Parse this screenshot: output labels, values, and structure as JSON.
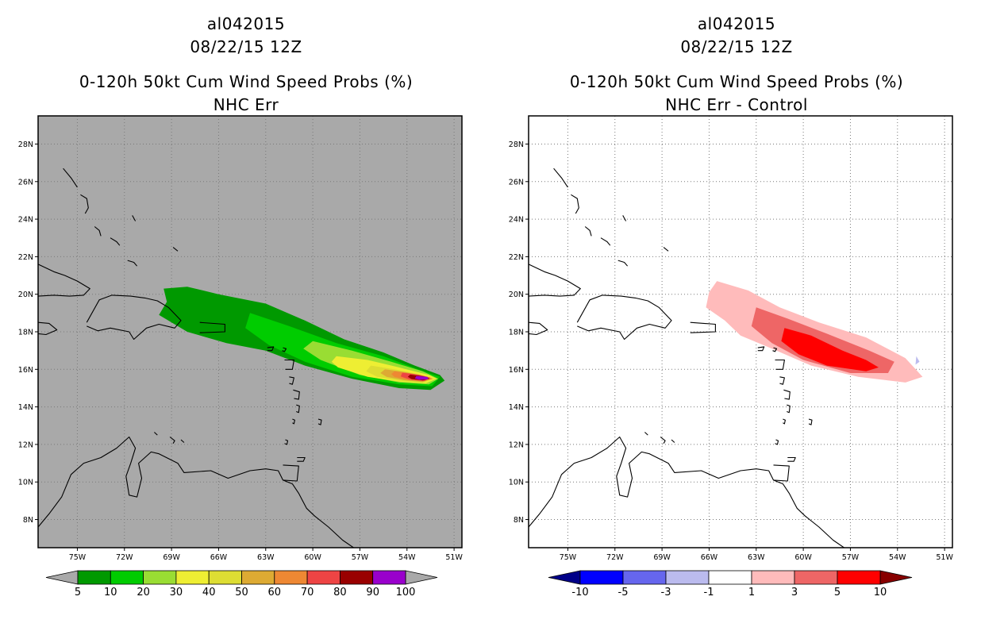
{
  "chart_data": [
    {
      "type": "heatmap",
      "id": "left",
      "title_lines": [
        "al042015",
        "08/22/15 12Z",
        "0-120h 50kt Cum Wind Speed Probs (%)",
        "NHC Err"
      ],
      "background": "#a9a9a9",
      "lon_range": [
        -77.5,
        -50.5
      ],
      "lat_range": [
        6.5,
        29.5
      ],
      "x_ticks": [
        "75W",
        "72W",
        "69W",
        "66W",
        "63W",
        "60W",
        "57W",
        "54W",
        "51W"
      ],
      "x_tick_values": [
        -75,
        -72,
        -69,
        -66,
        -63,
        -60,
        -57,
        -54,
        -51
      ],
      "y_ticks": [
        "28N",
        "26N",
        "24N",
        "22N",
        "20N",
        "18N",
        "16N",
        "14N",
        "12N",
        "10N",
        "8N"
      ],
      "y_tick_values": [
        28,
        26,
        24,
        22,
        20,
        18,
        16,
        14,
        12,
        10,
        8
      ],
      "colorbar": {
        "labels": [
          "5",
          "10",
          "20",
          "30",
          "40",
          "50",
          "60",
          "70",
          "80",
          "90",
          "100"
        ],
        "colors": [
          "#009900",
          "#00cc00",
          "#99dd33",
          "#eeee33",
          "#dddd33",
          "#ddaa33",
          "#ee8833",
          "#ee4444",
          "#990000",
          "#9900cc"
        ],
        "under_color": "#a9a9a9",
        "over_color": "#a9a9a9"
      },
      "contours": [
        {
          "level": "5",
          "color": "#009900",
          "lonlat": [
            [
              -69.5,
              20.3
            ],
            [
              -68.0,
              20.4
            ],
            [
              -66.0,
              20.0
            ],
            [
              -63.0,
              19.5
            ],
            [
              -60.5,
              18.6
            ],
            [
              -58.0,
              17.6
            ],
            [
              -55.5,
              16.9
            ],
            [
              -53.5,
              16.2
            ],
            [
              -51.9,
              15.7
            ],
            [
              -51.6,
              15.4
            ],
            [
              -52.5,
              14.9
            ],
            [
              -54.5,
              15.0
            ],
            [
              -57.5,
              15.5
            ],
            [
              -60.5,
              16.2
            ],
            [
              -63.0,
              17.0
            ],
            [
              -65.5,
              17.4
            ],
            [
              -68.0,
              18.0
            ],
            [
              -69.8,
              18.9
            ],
            [
              -69.3,
              19.6
            ]
          ]
        },
        {
          "level": "10",
          "color": "#00cc00",
          "lonlat": [
            [
              -64.0,
              19.0
            ],
            [
              -61.5,
              18.3
            ],
            [
              -58.5,
              17.4
            ],
            [
              -55.5,
              16.7
            ],
            [
              -53.3,
              16.0
            ],
            [
              -51.9,
              15.6
            ],
            [
              -52.4,
              15.1
            ],
            [
              -54.5,
              15.2
            ],
            [
              -57.5,
              15.6
            ],
            [
              -60.5,
              16.4
            ],
            [
              -62.8,
              17.3
            ],
            [
              -64.3,
              18.2
            ]
          ]
        },
        {
          "level": "20",
          "color": "#99dd33",
          "lonlat": [
            [
              -60.0,
              17.5
            ],
            [
              -57.5,
              17.0
            ],
            [
              -55.0,
              16.4
            ],
            [
              -53.0,
              15.9
            ],
            [
              -52.0,
              15.5
            ],
            [
              -52.6,
              15.2
            ],
            [
              -54.5,
              15.3
            ],
            [
              -57.0,
              15.7
            ],
            [
              -59.5,
              16.5
            ],
            [
              -60.6,
              17.1
            ]
          ]
        },
        {
          "level": "30",
          "color": "#eeee33",
          "lonlat": [
            [
              -58.5,
              16.7
            ],
            [
              -56.5,
              16.5
            ],
            [
              -54.5,
              16.1
            ],
            [
              -52.6,
              15.7
            ],
            [
              -52.1,
              15.5
            ],
            [
              -52.8,
              15.25
            ],
            [
              -54.5,
              15.35
            ],
            [
              -56.5,
              15.6
            ],
            [
              -58.4,
              16.1
            ],
            [
              -58.8,
              16.4
            ]
          ]
        },
        {
          "level": "40",
          "color": "#dddd33",
          "lonlat": [
            [
              -56.3,
              16.2
            ],
            [
              -54.8,
              16.0
            ],
            [
              -53.3,
              15.75
            ],
            [
              -52.3,
              15.5
            ],
            [
              -53.0,
              15.3
            ],
            [
              -54.5,
              15.4
            ],
            [
              -55.9,
              15.6
            ],
            [
              -56.6,
              15.9
            ]
          ]
        },
        {
          "level": "50",
          "color": "#ddaa33",
          "lonlat": [
            [
              -55.4,
              16.0
            ],
            [
              -54.1,
              15.85
            ],
            [
              -52.9,
              15.65
            ],
            [
              -52.35,
              15.5
            ],
            [
              -53.0,
              15.33
            ],
            [
              -54.2,
              15.42
            ],
            [
              -55.3,
              15.6
            ],
            [
              -55.7,
              15.8
            ]
          ]
        },
        {
          "level": "60",
          "color": "#ee8833",
          "lonlat": [
            [
              -54.8,
              15.9
            ],
            [
              -53.7,
              15.78
            ],
            [
              -52.7,
              15.6
            ],
            [
              -52.4,
              15.5
            ],
            [
              -53.0,
              15.36
            ],
            [
              -54.0,
              15.44
            ],
            [
              -54.8,
              15.6
            ],
            [
              -55.0,
              15.75
            ]
          ]
        },
        {
          "level": "70",
          "color": "#ee4444",
          "lonlat": [
            [
              -54.3,
              15.82
            ],
            [
              -53.3,
              15.72
            ],
            [
              -52.5,
              15.55
            ],
            [
              -52.9,
              15.38
            ],
            [
              -53.8,
              15.45
            ],
            [
              -54.4,
              15.62
            ]
          ]
        },
        {
          "level": "80",
          "color": "#990000",
          "lonlat": [
            [
              -53.8,
              15.72
            ],
            [
              -52.9,
              15.62
            ],
            [
              -52.55,
              15.5
            ],
            [
              -53.0,
              15.41
            ],
            [
              -53.7,
              15.48
            ],
            [
              -53.95,
              15.6
            ]
          ]
        },
        {
          "level": "90",
          "color": "#9900cc",
          "lonlat": [
            [
              -53.4,
              15.64
            ],
            [
              -52.7,
              15.6
            ],
            [
              -52.65,
              15.47
            ],
            [
              -53.2,
              15.44
            ],
            [
              -53.5,
              15.52
            ]
          ]
        }
      ]
    },
    {
      "type": "heatmap",
      "id": "right",
      "title_lines": [
        "al042015",
        "08/22/15 12Z",
        "0-120h 50kt Cum Wind Speed Probs (%)",
        "NHC Err - Control"
      ],
      "background": "#ffffff",
      "lon_range": [
        -77.5,
        -50.5
      ],
      "lat_range": [
        6.5,
        29.5
      ],
      "x_ticks": [
        "75W",
        "72W",
        "69W",
        "66W",
        "63W",
        "60W",
        "57W",
        "54W",
        "51W"
      ],
      "x_tick_values": [
        -75,
        -72,
        -69,
        -66,
        -63,
        -60,
        -57,
        -54,
        -51
      ],
      "y_ticks": [
        "28N",
        "26N",
        "24N",
        "22N",
        "20N",
        "18N",
        "16N",
        "14N",
        "12N",
        "10N",
        "8N"
      ],
      "y_tick_values": [
        28,
        26,
        24,
        22,
        20,
        18,
        16,
        14,
        12,
        10,
        8
      ],
      "colorbar": {
        "labels": [
          "-10",
          "-5",
          "-3",
          "-1",
          "1",
          "3",
          "5",
          "10"
        ],
        "colors": [
          "#0000ff",
          "#6666ee",
          "#bbbbee",
          "#ffffff",
          "#ffbbbb",
          "#ee6666",
          "#ff0000"
        ],
        "under_color": "#000088",
        "over_color": "#880000"
      },
      "contours": [
        {
          "level": "1",
          "color": "#ffbbbb",
          "lonlat": [
            [
              -65.5,
              20.7
            ],
            [
              -63.5,
              20.2
            ],
            [
              -61.5,
              19.3
            ],
            [
              -59.0,
              18.5
            ],
            [
              -56.0,
              17.7
            ],
            [
              -53.5,
              16.6
            ],
            [
              -52.4,
              15.6
            ],
            [
              -53.5,
              15.3
            ],
            [
              -56.5,
              15.6
            ],
            [
              -59.5,
              16.2
            ],
            [
              -62.0,
              17.1
            ],
            [
              -64.0,
              17.8
            ],
            [
              -65.0,
              18.6
            ],
            [
              -66.2,
              19.3
            ],
            [
              -66.0,
              20.1
            ]
          ]
        },
        {
          "level": "3",
          "color": "#ee6666",
          "lonlat": [
            [
              -63.0,
              19.3
            ],
            [
              -61.0,
              18.7
            ],
            [
              -58.5,
              17.9
            ],
            [
              -55.8,
              17.0
            ],
            [
              -54.2,
              16.4
            ],
            [
              -54.6,
              15.8
            ],
            [
              -57.0,
              15.8
            ],
            [
              -60.0,
              16.5
            ],
            [
              -62.0,
              17.4
            ],
            [
              -63.3,
              18.3
            ]
          ]
        },
        {
          "level": "5",
          "color": "#ff0000",
          "lonlat": [
            [
              -61.2,
              18.2
            ],
            [
              -59.5,
              17.8
            ],
            [
              -57.5,
              17.0
            ],
            [
              -56.0,
              16.5
            ],
            [
              -55.2,
              16.1
            ],
            [
              -56.0,
              15.9
            ],
            [
              -58.5,
              16.2
            ],
            [
              -60.3,
              16.8
            ],
            [
              -61.4,
              17.5
            ]
          ]
        },
        {
          "level": "-1",
          "color": "#bbbbee",
          "lonlat": [
            [
              -52.8,
              16.7
            ],
            [
              -52.6,
              16.4
            ],
            [
              -52.85,
              16.25
            ]
          ]
        }
      ]
    }
  ]
}
